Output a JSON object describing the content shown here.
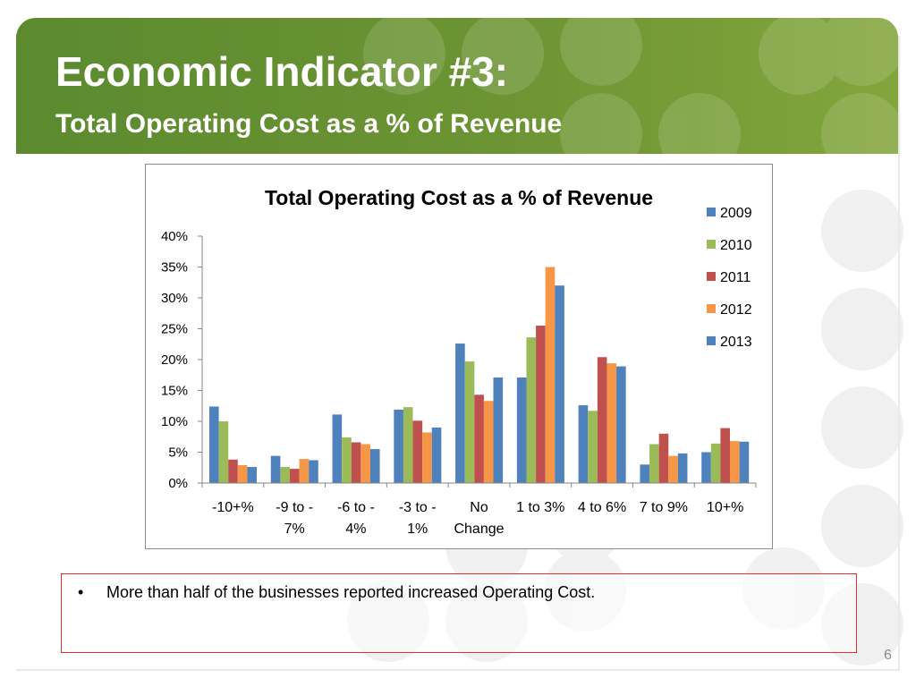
{
  "slide": {
    "title": "Economic Indicator #3:",
    "subtitle": "Total Operating Cost as a % of Revenue",
    "bullet": "More than half of the businesses reported increased Operating Cost.",
    "bullet_symbol": "•",
    "page_number": "6",
    "colors": {
      "header_green": "#6c9433",
      "box_border": "#e03030"
    }
  },
  "chart_data": {
    "type": "bar",
    "title": "Total Operating Cost as a % of Revenue",
    "xlabel": "",
    "ylabel": "",
    "categories": [
      [
        "-10+%"
      ],
      [
        "-9 to -",
        "7%"
      ],
      [
        "-6 to -",
        "4%"
      ],
      [
        "-3 to -",
        "1%"
      ],
      [
        "No",
        "Change"
      ],
      [
        "1 to 3%"
      ],
      [
        "4 to 6%"
      ],
      [
        "7 to 9%"
      ],
      [
        "10+%"
      ]
    ],
    "ylim": [
      0,
      0.4
    ],
    "yticks": [
      "0%",
      "5%",
      "10%",
      "15%",
      "20%",
      "25%",
      "30%",
      "35%",
      "40%"
    ],
    "legend_position": "right",
    "grid": false,
    "series": [
      {
        "name": "2009",
        "color": "#4f81bd",
        "values": [
          0.124,
          0.044,
          0.111,
          0.119,
          0.226,
          0.171,
          0.126,
          0.03,
          0.05
        ]
      },
      {
        "name": "2010",
        "color": "#9bbb59",
        "values": [
          0.1,
          0.026,
          0.074,
          0.123,
          0.197,
          0.236,
          0.117,
          0.063,
          0.064
        ]
      },
      {
        "name": "2011",
        "color": "#c0504d",
        "values": [
          0.038,
          0.023,
          0.066,
          0.101,
          0.143,
          0.255,
          0.204,
          0.08,
          0.089
        ]
      },
      {
        "name": "2012",
        "color": "#f79646",
        "values": [
          0.029,
          0.039,
          0.063,
          0.082,
          0.133,
          0.35,
          0.194,
          0.044,
          0.068
        ]
      },
      {
        "name": "2013",
        "color": "#4f81bd",
        "values": [
          0.026,
          0.037,
          0.055,
          0.09,
          0.171,
          0.32,
          0.189,
          0.048,
          0.067
        ]
      }
    ]
  }
}
